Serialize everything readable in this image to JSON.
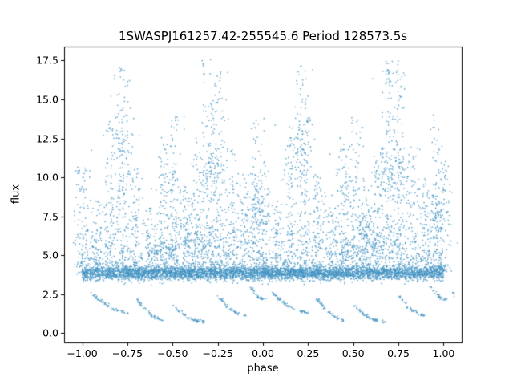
{
  "chart_data": {
    "type": "scatter",
    "title": "1SWASPJ161257.42-255545.6 Period 128573.5s",
    "xlabel": "phase",
    "ylabel": "flux",
    "xlim": [
      -1.1,
      1.1
    ],
    "ylim": [
      -0.6,
      18.4
    ],
    "xticks": [
      -1.0,
      -0.75,
      -0.5,
      -0.25,
      0.0,
      0.25,
      0.5,
      0.75,
      1.0
    ],
    "xtick_labels": [
      "−1.00",
      "−0.75",
      "−0.50",
      "−0.25",
      "0.00",
      "0.25",
      "0.50",
      "0.75",
      "1.00"
    ],
    "yticks": [
      0.0,
      2.5,
      5.0,
      7.5,
      10.0,
      12.5,
      15.0,
      17.5
    ],
    "ytick_labels": [
      "0.0",
      "2.5",
      "5.0",
      "7.5",
      "10.0",
      "12.5",
      "15.0",
      "17.5"
    ],
    "grid": false,
    "legend": "none",
    "marker_color": "#4393c3",
    "marker_alpha": 0.8,
    "marker_radius": 0.85,
    "seed": 7,
    "band": {
      "n": 4500,
      "y_center": 3.85,
      "y_sigma": 0.22,
      "x_min": -1.0,
      "x_max": 1.0
    },
    "sparse": {
      "n": 650,
      "y_base": 4.4,
      "decay": 1.9,
      "y_max": 16.5
    },
    "plumes": [
      {
        "phase": 0.0,
        "top": 11.0,
        "width": 0.045,
        "n": 110
      },
      {
        "phase": 0.08,
        "top": 8.5,
        "width": 0.035,
        "n": 70
      },
      {
        "phase": 0.15,
        "top": 13.5,
        "width": 0.04,
        "n": 110
      },
      {
        "phase": 0.22,
        "top": 17.2,
        "width": 0.045,
        "n": 150
      },
      {
        "phase": 0.3,
        "top": 10.5,
        "width": 0.04,
        "n": 95
      },
      {
        "phase": 0.38,
        "top": 8.0,
        "width": 0.035,
        "n": 65
      },
      {
        "phase": 0.45,
        "top": 12.6,
        "width": 0.04,
        "n": 110
      },
      {
        "phase": 0.51,
        "top": 14.0,
        "width": 0.04,
        "n": 120
      },
      {
        "phase": 0.57,
        "top": 9.5,
        "width": 0.035,
        "n": 75
      },
      {
        "phase": 0.63,
        "top": 11.5,
        "width": 0.04,
        "n": 85
      },
      {
        "phase": 0.7,
        "top": 17.6,
        "width": 0.045,
        "n": 160
      },
      {
        "phase": 0.76,
        "top": 17.0,
        "width": 0.045,
        "n": 140
      },
      {
        "phase": 0.83,
        "top": 12.0,
        "width": 0.04,
        "n": 95
      },
      {
        "phase": 0.9,
        "top": 10.0,
        "width": 0.04,
        "n": 85
      },
      {
        "phase": 0.96,
        "top": 13.8,
        "width": 0.035,
        "n": 90
      }
    ],
    "clumps": [
      {
        "x": 0.62,
        "y": 6.2,
        "sx": 0.06,
        "sy": 0.6,
        "n": 90
      },
      {
        "x": 0.45,
        "y": 5.4,
        "sx": 0.05,
        "sy": 0.5,
        "n": 70
      },
      {
        "x": 0.72,
        "y": 10.5,
        "sx": 0.04,
        "sy": 0.8,
        "n": 60
      },
      {
        "x": 0.22,
        "y": 12.5,
        "sx": 0.03,
        "sy": 1.0,
        "n": 50
      },
      {
        "x": 0.97,
        "y": 7.8,
        "sx": 0.04,
        "sy": 0.7,
        "n": 50
      }
    ],
    "arcs": [
      {
        "x0": 0.05,
        "x1": 0.25,
        "y0": 2.6,
        "y1": 1.3,
        "n": 60
      },
      {
        "x0": 0.3,
        "x1": 0.45,
        "y0": 2.2,
        "y1": 0.8,
        "n": 50
      },
      {
        "x0": 0.5,
        "x1": 0.68,
        "y0": 1.8,
        "y1": 0.7,
        "n": 55
      },
      {
        "x0": 0.75,
        "x1": 0.9,
        "y0": 2.4,
        "y1": 1.1,
        "n": 45
      },
      {
        "x0": 0.93,
        "x1": 1.02,
        "y0": 3.0,
        "y1": 2.2,
        "n": 30
      }
    ]
  }
}
